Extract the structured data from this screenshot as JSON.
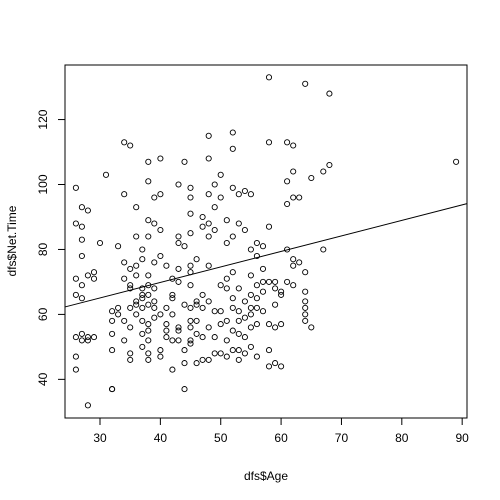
{
  "chart_data": {
    "type": "scatter",
    "xlabel": "dfs$Age",
    "ylabel": "dfs$Net.Time",
    "xlim": [
      24.2,
      90.8
    ],
    "ylim": [
      28.1,
      136.8
    ],
    "x_ticks": [
      30,
      40,
      50,
      60,
      70,
      80,
      90
    ],
    "y_ticks": [
      40,
      60,
      80,
      100,
      120
    ],
    "marker": "open-circle",
    "colors": {
      "points": "#000000",
      "line": "#000000",
      "frame": "#000000",
      "background": "#ffffff"
    },
    "regression_line": {
      "x": [
        24.2,
        90.8
      ],
      "y": [
        62.3,
        94.1
      ]
    },
    "points": [
      [
        26,
        99
      ],
      [
        26,
        88
      ],
      [
        26,
        71
      ],
      [
        26,
        66
      ],
      [
        26,
        53
      ],
      [
        26,
        47
      ],
      [
        26,
        43
      ],
      [
        27,
        93
      ],
      [
        27,
        78
      ],
      [
        27,
        83
      ],
      [
        27,
        87
      ],
      [
        27,
        69
      ],
      [
        27,
        65
      ],
      [
        27,
        54
      ],
      [
        27,
        52
      ],
      [
        28,
        92
      ],
      [
        28,
        72
      ],
      [
        28,
        53
      ],
      [
        28,
        52
      ],
      [
        28,
        32
      ],
      [
        29,
        73
      ],
      [
        29,
        71
      ],
      [
        29,
        53
      ],
      [
        30,
        82
      ],
      [
        31,
        103
      ],
      [
        32,
        61
      ],
      [
        32,
        58
      ],
      [
        32,
        54
      ],
      [
        32,
        49
      ],
      [
        32,
        37
      ],
      [
        32,
        37
      ],
      [
        33,
        81
      ],
      [
        33,
        62
      ],
      [
        33,
        60
      ],
      [
        34,
        113
      ],
      [
        34,
        97
      ],
      [
        34,
        76
      ],
      [
        34,
        71
      ],
      [
        34,
        58
      ],
      [
        34,
        52
      ],
      [
        35,
        112
      ],
      [
        35,
        74
      ],
      [
        35,
        69
      ],
      [
        35,
        68
      ],
      [
        35,
        62
      ],
      [
        35,
        56
      ],
      [
        35,
        48
      ],
      [
        35,
        46
      ],
      [
        36,
        93
      ],
      [
        36,
        84
      ],
      [
        36,
        75
      ],
      [
        36,
        72
      ],
      [
        36,
        64
      ],
      [
        36,
        63
      ],
      [
        36,
        60
      ],
      [
        37,
        80
      ],
      [
        37,
        77
      ],
      [
        37,
        68
      ],
      [
        37,
        66
      ],
      [
        37,
        65
      ],
      [
        37,
        62
      ],
      [
        37,
        58
      ],
      [
        37,
        54
      ],
      [
        37,
        50
      ],
      [
        38,
        107
      ],
      [
        38,
        101
      ],
      [
        38,
        89
      ],
      [
        38,
        84
      ],
      [
        38,
        72
      ],
      [
        38,
        69
      ],
      [
        38,
        66
      ],
      [
        38,
        63
      ],
      [
        38,
        57
      ],
      [
        38,
        55
      ],
      [
        38,
        52
      ],
      [
        38,
        48
      ],
      [
        38,
        46
      ],
      [
        39,
        96
      ],
      [
        39,
        88
      ],
      [
        39,
        76
      ],
      [
        39,
        68
      ],
      [
        39,
        64
      ],
      [
        39,
        62
      ],
      [
        39,
        59
      ],
      [
        40,
        108
      ],
      [
        40,
        97
      ],
      [
        40,
        86
      ],
      [
        40,
        78
      ],
      [
        40,
        60
      ],
      [
        40,
        49
      ],
      [
        40,
        47
      ],
      [
        41,
        75
      ],
      [
        41,
        62
      ],
      [
        41,
        57
      ],
      [
        41,
        55
      ],
      [
        41,
        53
      ],
      [
        42,
        71
      ],
      [
        42,
        66
      ],
      [
        42,
        65
      ],
      [
        42,
        60
      ],
      [
        42,
        52
      ],
      [
        42,
        43
      ],
      [
        43,
        100
      ],
      [
        43,
        84
      ],
      [
        43,
        82
      ],
      [
        43,
        74
      ],
      [
        43,
        70
      ],
      [
        43,
        56
      ],
      [
        43,
        55
      ],
      [
        43,
        52
      ],
      [
        44,
        107
      ],
      [
        44,
        81
      ],
      [
        44,
        63
      ],
      [
        44,
        49
      ],
      [
        44,
        45
      ],
      [
        44,
        37
      ],
      [
        45,
        99
      ],
      [
        45,
        96
      ],
      [
        45,
        91
      ],
      [
        45,
        85
      ],
      [
        45,
        75
      ],
      [
        45,
        73
      ],
      [
        45,
        69
      ],
      [
        45,
        62
      ],
      [
        45,
        58
      ],
      [
        45,
        56
      ],
      [
        45,
        52
      ],
      [
        45,
        51
      ],
      [
        46,
        77
      ],
      [
        46,
        64
      ],
      [
        46,
        63
      ],
      [
        46,
        58
      ],
      [
        46,
        54
      ],
      [
        46,
        45
      ],
      [
        47,
        90
      ],
      [
        47,
        87
      ],
      [
        47,
        66
      ],
      [
        47,
        62
      ],
      [
        47,
        53
      ],
      [
        47,
        46
      ],
      [
        48,
        115
      ],
      [
        48,
        108
      ],
      [
        48,
        97
      ],
      [
        48,
        88
      ],
      [
        48,
        84
      ],
      [
        48,
        75
      ],
      [
        48,
        64
      ],
      [
        48,
        56
      ],
      [
        48,
        46
      ],
      [
        49,
        100
      ],
      [
        49,
        93
      ],
      [
        49,
        86
      ],
      [
        49,
        61
      ],
      [
        49,
        53
      ],
      [
        49,
        48
      ],
      [
        50,
        103
      ],
      [
        50,
        96
      ],
      [
        50,
        69
      ],
      [
        50,
        61
      ],
      [
        50,
        57
      ],
      [
        50,
        48
      ],
      [
        51,
        89
      ],
      [
        51,
        82
      ],
      [
        51,
        71
      ],
      [
        51,
        68
      ],
      [
        51,
        58
      ],
      [
        51,
        52
      ],
      [
        51,
        47
      ],
      [
        52,
        116
      ],
      [
        52,
        111
      ],
      [
        52,
        99
      ],
      [
        52,
        84
      ],
      [
        52,
        73
      ],
      [
        52,
        65
      ],
      [
        52,
        62
      ],
      [
        52,
        55
      ],
      [
        52,
        49
      ],
      [
        53,
        97
      ],
      [
        53,
        88
      ],
      [
        53,
        68
      ],
      [
        53,
        61
      ],
      [
        53,
        58
      ],
      [
        53,
        54
      ],
      [
        53,
        49
      ],
      [
        53,
        46
      ],
      [
        54,
        98
      ],
      [
        54,
        86
      ],
      [
        54,
        64
      ],
      [
        54,
        59
      ],
      [
        54,
        53
      ],
      [
        54,
        48
      ],
      [
        55,
        97
      ],
      [
        55,
        80
      ],
      [
        55,
        72
      ],
      [
        55,
        66
      ],
      [
        55,
        62
      ],
      [
        55,
        60
      ],
      [
        55,
        56
      ],
      [
        55,
        50
      ],
      [
        56,
        82
      ],
      [
        56,
        78
      ],
      [
        56,
        69
      ],
      [
        56,
        65
      ],
      [
        56,
        62
      ],
      [
        56,
        57
      ],
      [
        56,
        47
      ],
      [
        57,
        81
      ],
      [
        57,
        74
      ],
      [
        57,
        70
      ],
      [
        57,
        67
      ],
      [
        57,
        61
      ],
      [
        58,
        133
      ],
      [
        58,
        113
      ],
      [
        58,
        87
      ],
      [
        58,
        70
      ],
      [
        58,
        57
      ],
      [
        58,
        49
      ],
      [
        58,
        44
      ],
      [
        59,
        70
      ],
      [
        59,
        68
      ],
      [
        59,
        63
      ],
      [
        59,
        56
      ],
      [
        59,
        45
      ],
      [
        60,
        67
      ],
      [
        60,
        66
      ],
      [
        60,
        57
      ],
      [
        60,
        44
      ],
      [
        61,
        113
      ],
      [
        61,
        101
      ],
      [
        61,
        94
      ],
      [
        61,
        80
      ],
      [
        61,
        70
      ],
      [
        62,
        112
      ],
      [
        62,
        104
      ],
      [
        62,
        96
      ],
      [
        62,
        77
      ],
      [
        62,
        75
      ],
      [
        62,
        69
      ],
      [
        63,
        96
      ],
      [
        63,
        76
      ],
      [
        64,
        131
      ],
      [
        64,
        73
      ],
      [
        64,
        67
      ],
      [
        64,
        64
      ],
      [
        64,
        62
      ],
      [
        64,
        60
      ],
      [
        64,
        58
      ],
      [
        65,
        102
      ],
      [
        65,
        56
      ],
      [
        67,
        104
      ],
      [
        67,
        80
      ],
      [
        68,
        128
      ],
      [
        68,
        106
      ],
      [
        89,
        107
      ]
    ]
  }
}
